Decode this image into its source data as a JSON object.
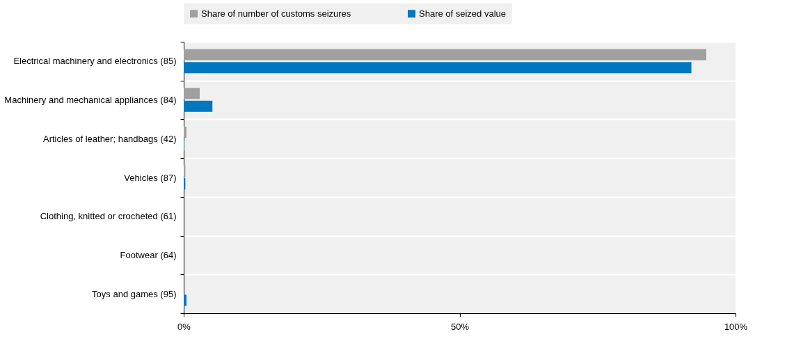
{
  "chart_data": {
    "type": "bar",
    "orientation": "horizontal",
    "categories": [
      "Electrical machinery and electronics (85)",
      "Machinery and mechanical appliances (84)",
      "Articles of leather; handbags (42)",
      "Vehicles (87)",
      "Clothing, knitted or crocheted (61)",
      "Footwear (64)",
      "Toys and games (95)"
    ],
    "series": [
      {
        "name": "Share of number of customs seizures",
        "color": "#a0a0a0",
        "values": [
          94.7,
          2.9,
          0.5,
          0.3,
          0.0,
          0.0,
          0.0
        ]
      },
      {
        "name": "Share of seized value",
        "color": "#0077be",
        "values": [
          92.0,
          5.2,
          0.1,
          0.3,
          0.0,
          0.0,
          0.5
        ]
      }
    ],
    "xlim": [
      0,
      100
    ],
    "xticks": [
      {
        "value": 0,
        "label": "0%"
      },
      {
        "value": 50,
        "label": "50%"
      },
      {
        "value": 100,
        "label": "100%"
      }
    ],
    "grid": "y",
    "legend": "top"
  }
}
